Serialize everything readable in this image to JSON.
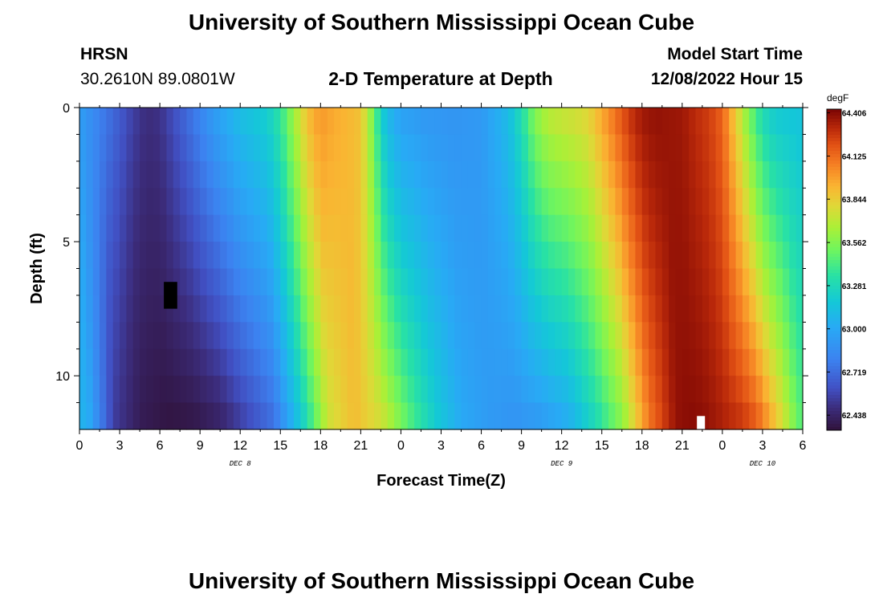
{
  "page": {
    "title": "University of Southern Mississippi Ocean Cube",
    "station_id": "HRSN",
    "station_coords": "30.2610N  89.0801W",
    "plot_title": "2-D Temperature at Depth",
    "model_start_label": "Model Start Time",
    "model_start_value": "12/08/2022 Hour 15",
    "footer_title": "University of Southern Mississippi Ocean Cube"
  },
  "chart_data": {
    "type": "heatmap",
    "title": "2-D Temperature at Depth",
    "xlabel": "Forecast Time(Z)",
    "ylabel": "Depth (ft)",
    "x_hours_range": [
      0,
      54
    ],
    "x_ticks": [
      "0",
      "3",
      "6",
      "9",
      "12",
      "15",
      "18",
      "21",
      "0",
      "3",
      "6",
      "9",
      "12",
      "15",
      "18",
      "21",
      "0",
      "3",
      "6"
    ],
    "date_labels": [
      {
        "text": "DEC 8",
        "hour": 12
      },
      {
        "text": "DEC 9",
        "hour": 36
      },
      {
        "text": "DEC 10",
        "hour": 51
      }
    ],
    "y_range": [
      0,
      12
    ],
    "y_ticks": [
      "0",
      "5",
      "10"
    ],
    "colorbar": {
      "unit": "degF",
      "min": 62.34,
      "max": 64.43,
      "tick_labels": [
        "64.406",
        "64.125",
        "63.844",
        "63.562",
        "63.281",
        "63.000",
        "62.719",
        "62.438"
      ]
    },
    "depth_rows_ft": [
      0.5,
      1.5,
      2.5,
      3.5,
      4.5,
      5.5,
      6.5,
      7.5,
      8.5,
      9.5,
      10.5,
      11.5
    ],
    "surface_profile": {
      "hours": [
        0,
        2,
        4,
        5,
        6,
        8,
        10,
        12,
        14,
        15,
        16,
        17,
        18,
        19,
        20,
        21,
        22,
        22.5,
        23,
        24,
        25,
        26,
        28,
        30,
        32,
        33,
        34,
        35,
        36,
        37,
        38,
        39,
        40,
        41,
        42,
        43,
        44,
        45,
        46,
        47,
        48,
        49,
        50,
        51,
        52,
        53,
        54
      ],
      "values_degF": [
        62.95,
        62.75,
        62.55,
        62.48,
        62.5,
        62.7,
        62.92,
        63.1,
        63.2,
        63.35,
        63.62,
        63.88,
        64.0,
        63.95,
        63.92,
        63.88,
        63.5,
        63.25,
        63.1,
        62.97,
        62.95,
        62.92,
        62.9,
        62.92,
        63.1,
        63.3,
        63.55,
        63.68,
        63.72,
        63.75,
        63.8,
        63.95,
        64.1,
        64.25,
        64.35,
        64.38,
        64.37,
        64.36,
        64.3,
        64.25,
        64.15,
        63.85,
        63.55,
        63.3,
        63.2,
        63.18,
        63.15
      ]
    },
    "deep_profile": {
      "hours": [
        0,
        2,
        4,
        6,
        8,
        10,
        12,
        14,
        16,
        18,
        20,
        22,
        24,
        26,
        28,
        30,
        32,
        34,
        36,
        38,
        40,
        42,
        44,
        45,
        46,
        47,
        48,
        49,
        50,
        51,
        52,
        53,
        54
      ],
      "values_degF": [
        63.05,
        62.55,
        62.4,
        62.36,
        62.38,
        62.45,
        62.6,
        62.75,
        63.2,
        63.75,
        63.9,
        63.75,
        63.45,
        63.2,
        63.0,
        62.93,
        62.9,
        62.95,
        63.05,
        63.3,
        63.6,
        64.1,
        64.38,
        64.4,
        64.39,
        64.35,
        64.3,
        64.25,
        64.15,
        63.95,
        63.75,
        63.5,
        63.35
      ]
    },
    "annotations": [
      {
        "kind": "black_block",
        "hour_start": 6.3,
        "hour_end": 7.3,
        "depth_start": 6.5,
        "depth_end": 7.5
      },
      {
        "kind": "white_block",
        "hour_start": 46.1,
        "hour_end": 46.7,
        "depth_start": 11.5,
        "depth_end": 12.0
      }
    ],
    "grid": false
  }
}
